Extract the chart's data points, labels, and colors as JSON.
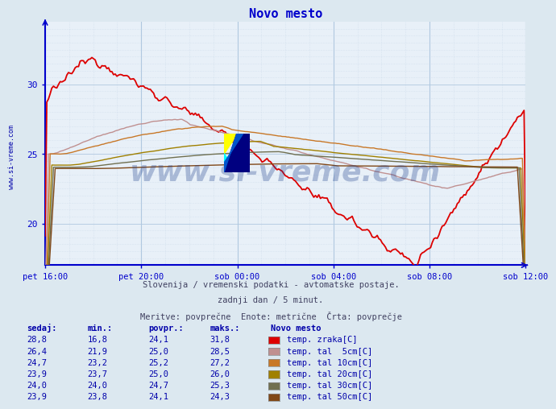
{
  "title": "Novo mesto",
  "background_color": "#dce8f0",
  "plot_bg_color": "#e8f0f8",
  "grid_color_major": "#b0c8e0",
  "grid_color_dotted": "#c8d8e8",
  "title_color": "#0000cc",
  "axis_color": "#0000cc",
  "tick_color": "#0000aa",
  "subtitle1": "Slovenija / vremenski podatki - avtomatske postaje.",
  "subtitle2": "zadnji dan / 5 minut.",
  "subtitle3": "Meritve: povprečne  Enote: metrične  Črta: povprečje",
  "watermark": "www.si-vreme.com",
  "xticklabels": [
    "pet 16:00",
    "pet 20:00",
    "sob 00:00",
    "sob 04:00",
    "sob 08:00",
    "sob 12:00"
  ],
  "xtick_positions": [
    0,
    48,
    96,
    144,
    192,
    240
  ],
  "yticks": [
    20,
    25,
    30
  ],
  "ylim": [
    17.0,
    34.5
  ],
  "xlim": [
    0,
    240
  ],
  "n_points": 289,
  "series_colors": [
    "#dd0000",
    "#c09090",
    "#c87828",
    "#a08000",
    "#707050",
    "#804818"
  ],
  "series_labels": [
    "temp. zraka[C]",
    "temp. tal  5cm[C]",
    "temp. tal 10cm[C]",
    "temp. tal 20cm[C]",
    "temp. tal 30cm[C]",
    "temp. tal 50cm[C]"
  ],
  "legend_table": {
    "headers": [
      "sedaj:",
      "min.:",
      "povpr.:",
      "maks.:",
      "Novo mesto"
    ],
    "rows": [
      {
        "sedaj": "28,8",
        "min": "16,8",
        "povpr": "24,1",
        "maks": "31,8",
        "color": "#dd0000",
        "label": "temp. zraka[C]"
      },
      {
        "sedaj": "26,4",
        "min": "21,9",
        "povpr": "25,0",
        "maks": "28,5",
        "color": "#c09090",
        "label": "temp. tal  5cm[C]"
      },
      {
        "sedaj": "24,7",
        "min": "23,2",
        "povpr": "25,2",
        "maks": "27,2",
        "color": "#c87828",
        "label": "temp. tal 10cm[C]"
      },
      {
        "sedaj": "23,9",
        "min": "23,7",
        "povpr": "25,0",
        "maks": "26,0",
        "color": "#a08000",
        "label": "temp. tal 20cm[C]"
      },
      {
        "sedaj": "24,0",
        "min": "24,0",
        "povpr": "24,7",
        "maks": "25,3",
        "color": "#707050",
        "label": "temp. tal 30cm[C]"
      },
      {
        "sedaj": "23,9",
        "min": "23,8",
        "povpr": "24,1",
        "maks": "24,3",
        "color": "#804818",
        "label": "temp. tal 50cm[C]"
      }
    ]
  }
}
